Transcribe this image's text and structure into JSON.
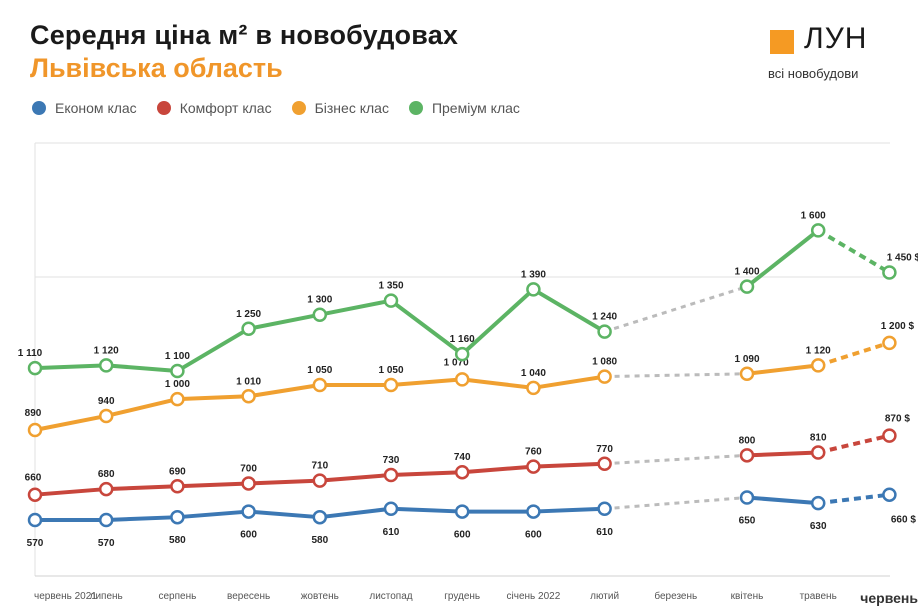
{
  "title": "Середня ціна м² в новобудовах",
  "subtitle": "Львівська область",
  "logo": {
    "name": "ЛУН",
    "tagline": "всі новобудови"
  },
  "colors": {
    "economy": "#3c78b4",
    "comfort": "#c8463c",
    "business": "#f0a030",
    "premium": "#5cb464",
    "forecast_gray": "#bbbbbb"
  },
  "chart_data": {
    "type": "line",
    "title": "Середня ціна м² в новобудовах",
    "subtitle": "Львівська область",
    "categories": [
      "червень 2021",
      "липень",
      "серпень",
      "вересень",
      "жовтень",
      "листопад",
      "грудень",
      "січень 2022",
      "лютий",
      "березень",
      "квітень",
      "травень",
      "червень"
    ],
    "grid": true,
    "legend_position": "top-left",
    "series": [
      {
        "name": "Економ клас",
        "key": "economy",
        "values": [
          570,
          570,
          580,
          600,
          580,
          610,
          600,
          600,
          610,
          null,
          650,
          630,
          660
        ],
        "labels": [
          "570",
          "570",
          "580",
          "600",
          "580",
          "610",
          "600",
          "600",
          "610",
          "",
          "650",
          "630",
          "660 $"
        ]
      },
      {
        "name": "Комфорт клас",
        "key": "comfort",
        "values": [
          660,
          680,
          690,
          700,
          710,
          730,
          740,
          760,
          770,
          null,
          800,
          810,
          870
        ],
        "labels": [
          "660",
          "680",
          "690",
          "700",
          "710",
          "730",
          "740",
          "760",
          "770",
          "",
          "800",
          "810",
          "870 $"
        ]
      },
      {
        "name": "Бізнес клас",
        "key": "business",
        "values": [
          890,
          940,
          1000,
          1010,
          1050,
          1050,
          1070,
          1040,
          1080,
          null,
          1090,
          1120,
          1200
        ],
        "labels": [
          "890",
          "940",
          "1 000",
          "1 010",
          "1 050",
          "1 050",
          "1 070",
          "1 040",
          "1 080",
          "",
          "1 090",
          "1 120",
          "1 200 $"
        ]
      },
      {
        "name": "Преміум клас",
        "key": "premium",
        "values": [
          1110,
          1120,
          1100,
          1250,
          1300,
          1350,
          1160,
          1390,
          1240,
          null,
          1400,
          1600,
          1450
        ],
        "labels": [
          "1 110",
          "1 120",
          "1 100",
          "1 250",
          "1 300",
          "1 350",
          "1 160",
          "1 390",
          "1 240",
          "",
          "1 400",
          "1 600",
          "1 450 $"
        ]
      }
    ]
  }
}
